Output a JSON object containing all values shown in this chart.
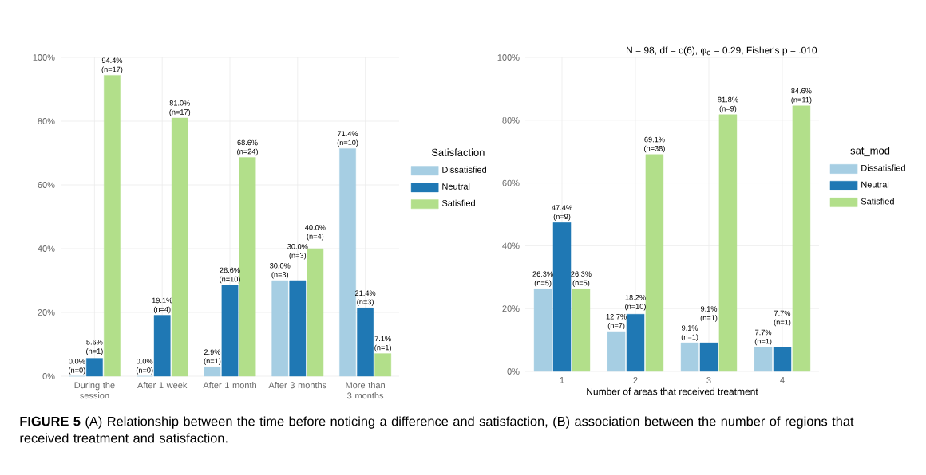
{
  "chart_data": [
    {
      "type": "bar",
      "categories": [
        "During the session",
        "After 1 week",
        "After 1 month",
        "After 3 months",
        "More than 3 months"
      ],
      "series": [
        {
          "name": "Dissatisfied",
          "color": "#a6cee3",
          "values": [
            0.0,
            0.0,
            2.9,
            30.0,
            71.4
          ],
          "value_labels": [
            "0.0% (n=0)",
            "0.0% (n=0)",
            "2.9% (n=1)",
            "30.0% (n=3)",
            "71.4% (n=10)"
          ]
        },
        {
          "name": "Neutral",
          "color": "#1f78b4",
          "values": [
            5.6,
            19.1,
            28.6,
            30.0,
            21.4
          ],
          "value_labels": [
            "5.6% (n=1)",
            "19.1% (n=4)",
            "28.6% (n=10)",
            "30.0% (n=3)",
            "21.4% (n=3)"
          ]
        },
        {
          "name": "Satisfied",
          "color": "#b2df8a",
          "values": [
            94.4,
            81.0,
            68.6,
            40.0,
            7.1
          ],
          "value_labels": [
            "94.4% (n=17)",
            "81.0% (n=17)",
            "68.6% (n=24)",
            "40.0% (n=4)",
            "7.1% (n=1)"
          ]
        }
      ],
      "ylim": [
        0,
        100
      ],
      "yticks": [
        {
          "value": 0,
          "label": "0%"
        },
        {
          "value": 20,
          "label": "20%"
        },
        {
          "value": 40,
          "label": "40%"
        },
        {
          "value": 60,
          "label": "60%"
        },
        {
          "value": 80,
          "label": "80%"
        },
        {
          "value": 100,
          "label": "100%"
        }
      ],
      "grid": true,
      "legend": "right",
      "legend_title": "Satisfaction",
      "annotations": [
        "**FIGURE 5** (A) Relationship between the time before noticing a difference and satisfaction, (B) association between the number of regions that received treatment and satisfaction."
      ]
    },
    {
      "type": "bar",
      "categories": [
        "1",
        "2",
        "3",
        "4"
      ],
      "series": [
        {
          "name": "Dissatisfied",
          "color": "#a6cee3",
          "values": [
            26.3,
            12.7,
            9.1,
            7.7
          ],
          "value_labels": [
            "26.3% (n=5)",
            "12.7% (n=7)",
            "9.1% (n=1)",
            "7.7% (n=1)"
          ]
        },
        {
          "name": "Neutral",
          "color": "#1f78b4",
          "values": [
            47.4,
            18.2,
            9.1,
            7.7
          ],
          "value_labels": [
            "47.4% (n=9)",
            "18.2% (n=10)",
            "9.1% (n=1)",
            "7.7% (n=1)"
          ]
        },
        {
          "name": "Satisfied",
          "color": "#b2df8a",
          "values": [
            26.3,
            69.1,
            81.8,
            84.6
          ],
          "value_labels": [
            "26.3% (n=5)",
            "69.1% (n=38)",
            "81.8% (n=9)",
            "84.6% (n=11)"
          ]
        }
      ],
      "ylim": [
        0,
        100
      ],
      "yticks": [
        {
          "value": 0,
          "label": "0%"
        },
        {
          "value": 20,
          "label": "20%"
        },
        {
          "value": 40,
          "label": "40%"
        },
        {
          "value": 60,
          "label": "60%"
        },
        {
          "value": 80,
          "label": "80%"
        },
        {
          "value": 100,
          "label": "100%"
        }
      ],
      "grid": true,
      "legend": "right",
      "legend_title": "sat_mod",
      "xlabel": "Number of areas that received treatment",
      "subtitle": "N = 98, df = c(6), φ$_{c}$ = 0.29, Fisher's p = .010"
    }
  ]
}
